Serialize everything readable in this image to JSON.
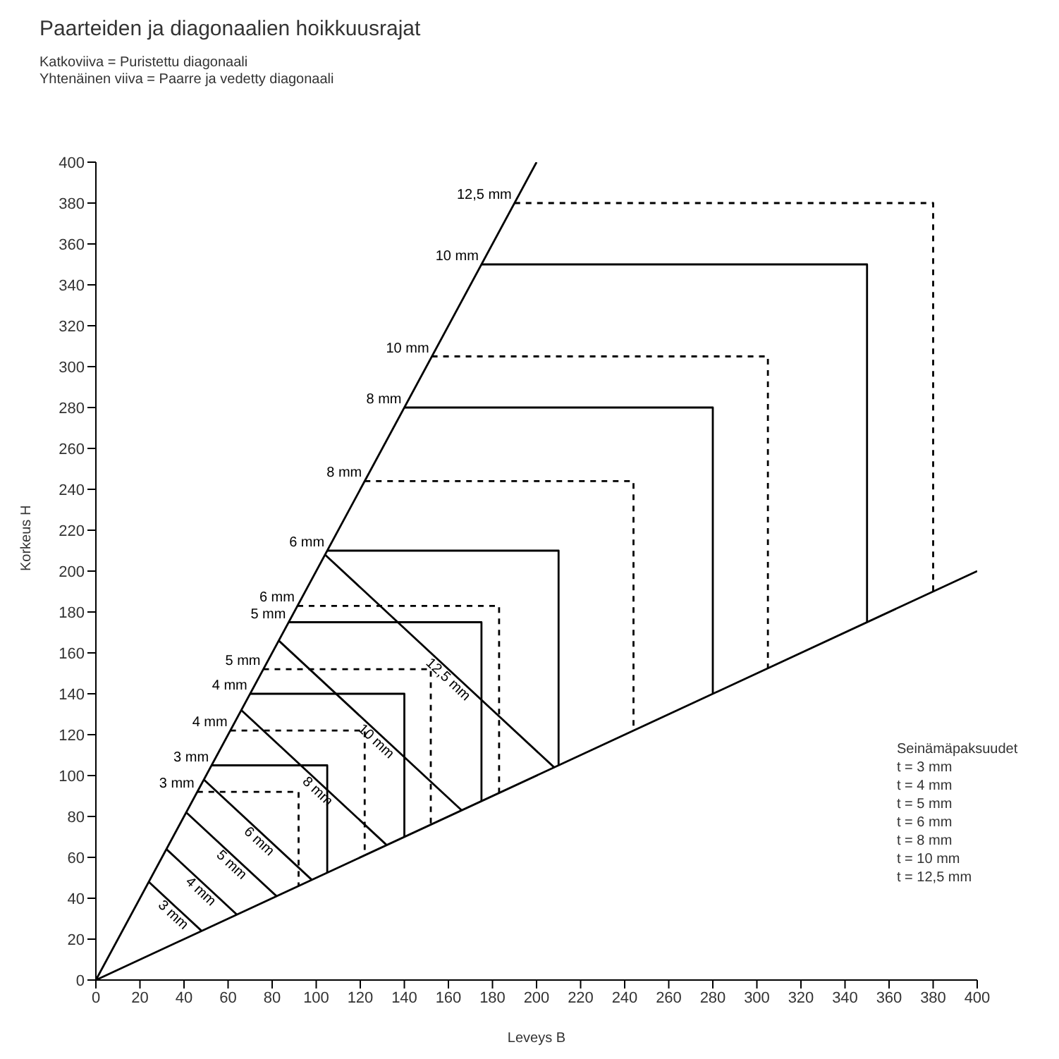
{
  "chart_data": {
    "type": "line",
    "title": "Paarteiden ja diagonaalien hoikkuusrajat",
    "subtitle": "Katkoviiva = Puristettu diagonaali\nYhtenäinen viiva = Paarre ja vedetty diagonaali",
    "xlabel": "Leveys B",
    "ylabel": "Korkeus H",
    "xlim": [
      0,
      400
    ],
    "ylim": [
      0,
      400
    ],
    "xticks": [
      0,
      20,
      40,
      60,
      80,
      100,
      120,
      140,
      160,
      180,
      200,
      220,
      240,
      260,
      280,
      300,
      320,
      340,
      360,
      380,
      400
    ],
    "yticks": [
      0,
      20,
      40,
      60,
      80,
      100,
      120,
      140,
      160,
      180,
      200,
      220,
      240,
      260,
      280,
      300,
      320,
      340,
      360,
      380,
      400
    ],
    "grid": false,
    "legend": false,
    "series": [
      {
        "color": "#000000",
        "line_style": "solid",
        "x": [
          0,
          200
        ],
        "values": [
          0,
          400
        ]
      },
      {
        "color": "#000000",
        "line_style": "solid",
        "x": [
          0,
          400
        ],
        "values": [
          0,
          200
        ]
      },
      {
        "name": "3 mm",
        "color": "#000000",
        "line_style": "solid",
        "x": [
          24,
          48
        ],
        "values": [
          48,
          24
        ]
      },
      {
        "name": "4 mm",
        "color": "#000000",
        "line_style": "solid",
        "x": [
          32,
          64
        ],
        "values": [
          64,
          32
        ]
      },
      {
        "name": "5 mm",
        "color": "#000000",
        "line_style": "solid",
        "x": [
          41,
          82
        ],
        "values": [
          82,
          41
        ]
      },
      {
        "name": "6 mm",
        "color": "#000000",
        "line_style": "solid",
        "x": [
          49,
          98
        ],
        "values": [
          98,
          49
        ]
      },
      {
        "name": "8 mm",
        "color": "#000000",
        "line_style": "solid",
        "x": [
          66,
          132
        ],
        "values": [
          132,
          66
        ]
      },
      {
        "name": "10 mm",
        "color": "#000000",
        "line_style": "solid",
        "x": [
          83,
          166
        ],
        "values": [
          166,
          83
        ]
      },
      {
        "name": "12,5 mm",
        "color": "#000000",
        "line_style": "solid",
        "x": [
          104,
          208
        ],
        "values": [
          208,
          104
        ]
      },
      {
        "name": "3 mm",
        "color": "#000000",
        "line_style": "solid",
        "x": [
          52.5,
          105,
          105
        ],
        "values": [
          105,
          105,
          52.5
        ]
      },
      {
        "name": "4 mm",
        "color": "#000000",
        "line_style": "solid",
        "x": [
          70,
          140,
          140
        ],
        "values": [
          140,
          140,
          70
        ]
      },
      {
        "name": "5 mm",
        "color": "#000000",
        "line_style": "solid",
        "x": [
          87.5,
          175,
          175
        ],
        "values": [
          175,
          175,
          87.5
        ]
      },
      {
        "name": "6 mm",
        "color": "#000000",
        "line_style": "solid",
        "x": [
          105,
          210,
          210
        ],
        "values": [
          210,
          210,
          105
        ]
      },
      {
        "name": "8 mm",
        "color": "#000000",
        "line_style": "solid",
        "x": [
          140,
          280,
          280
        ],
        "values": [
          280,
          280,
          140
        ]
      },
      {
        "name": "10 mm",
        "color": "#000000",
        "line_style": "solid",
        "x": [
          175,
          350,
          350
        ],
        "values": [
          350,
          350,
          175
        ]
      },
      {
        "name": "3 mm",
        "color": "#000000",
        "line_style": "dashed",
        "x": [
          46,
          92,
          92
        ],
        "values": [
          92,
          92,
          46
        ]
      },
      {
        "name": "4 mm",
        "color": "#000000",
        "line_style": "dashed",
        "x": [
          61,
          122,
          122
        ],
        "values": [
          122,
          122,
          61
        ]
      },
      {
        "name": "5 mm",
        "color": "#000000",
        "line_style": "dashed",
        "x": [
          76,
          152,
          152
        ],
        "values": [
          152,
          152,
          76
        ]
      },
      {
        "name": "6 mm",
        "color": "#000000",
        "line_style": "dashed",
        "x": [
          91.5,
          183,
          183
        ],
        "values": [
          183,
          183,
          91.5
        ]
      },
      {
        "name": "8 mm",
        "color": "#000000",
        "line_style": "dashed",
        "x": [
          122,
          244,
          244
        ],
        "values": [
          244,
          244,
          122
        ]
      },
      {
        "name": "10 mm",
        "color": "#000000",
        "line_style": "dashed",
        "x": [
          152.5,
          305,
          305
        ],
        "values": [
          305,
          305,
          152.5
        ]
      },
      {
        "name": "12,5 mm",
        "color": "#000000",
        "line_style": "dashed",
        "x": [
          190,
          380,
          380
        ],
        "values": [
          380,
          380,
          190
        ]
      }
    ],
    "annotations": [
      "Seinämäpaksuudet",
      "t = 3 mm",
      "t = 4 mm",
      "t = 5 mm",
      "t = 6 mm",
      "t = 8 mm",
      "t = 10 mm",
      "t = 12,5 mm"
    ]
  }
}
